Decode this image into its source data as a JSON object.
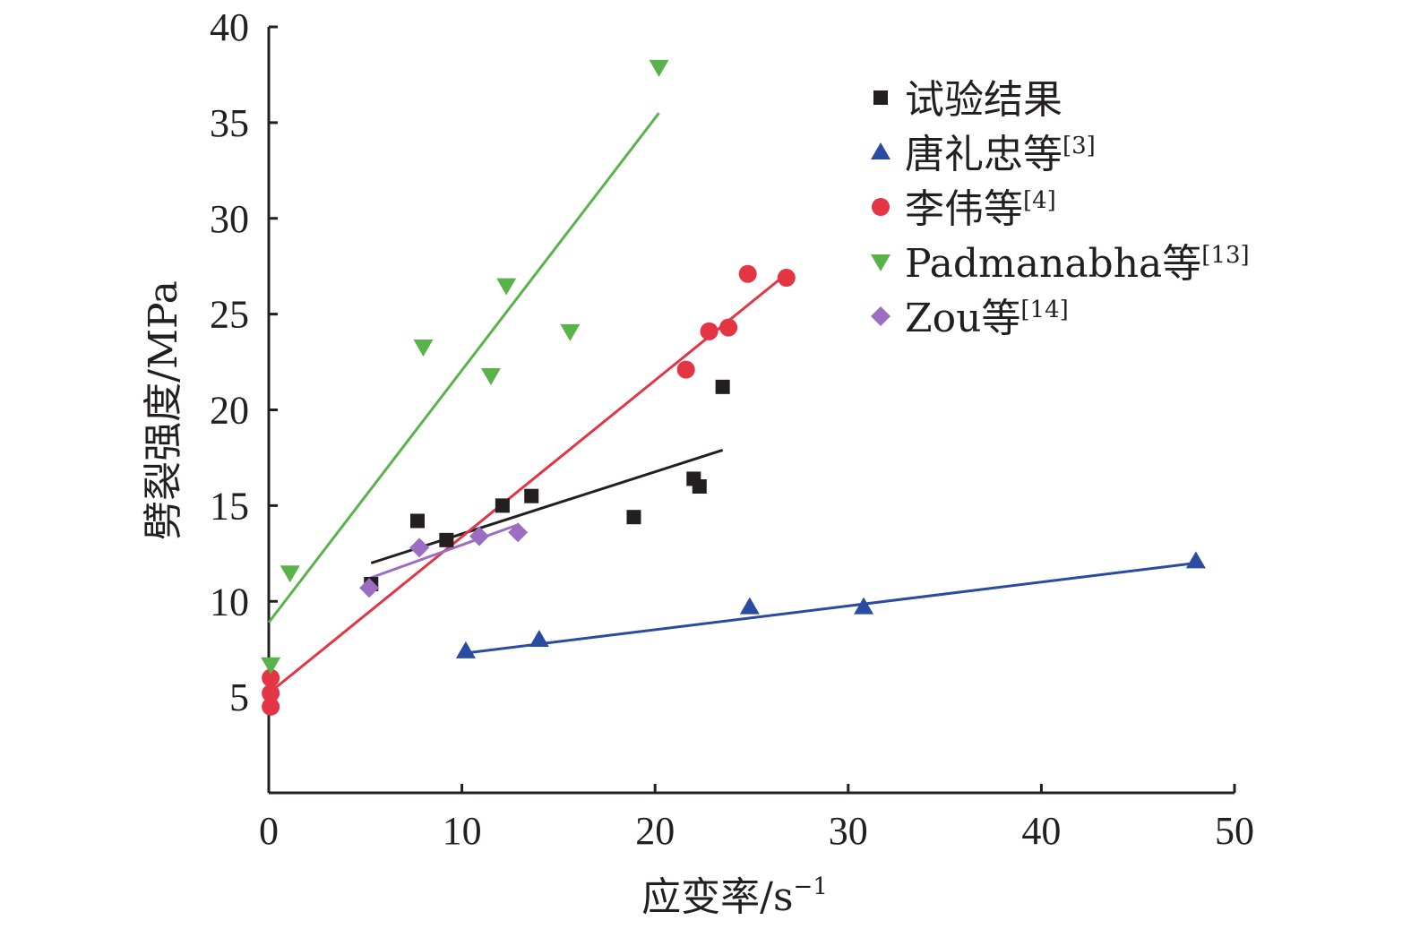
{
  "chart_data": {
    "type": "scatter",
    "xlabel": "应变率/s",
    "xlabel_sup": "−1",
    "ylabel": "劈裂强度/MPa",
    "xlim": [
      0,
      50
    ],
    "ylim": [
      0,
      40
    ],
    "xticks": [
      "0",
      "10",
      "20",
      "30",
      "40",
      "50"
    ],
    "yticks": [
      "5",
      "10",
      "15",
      "20",
      "25",
      "30",
      "35",
      "40"
    ],
    "legend_position": "top-right",
    "series": [
      {
        "name": "试验结果",
        "ref": "",
        "marker": "square",
        "color": "#231f20",
        "points": [
          [
            5.3,
            10.9
          ],
          [
            7.7,
            14.2
          ],
          [
            9.2,
            13.2
          ],
          [
            12.1,
            15.0
          ],
          [
            13.6,
            15.5
          ],
          [
            18.9,
            14.4
          ],
          [
            22.0,
            16.4
          ],
          [
            22.3,
            16.0
          ],
          [
            23.5,
            21.2
          ]
        ],
        "fit": [
          [
            5.3,
            12.0
          ],
          [
            23.5,
            17.9
          ]
        ]
      },
      {
        "name": "唐礼忠等",
        "ref": "[3]",
        "marker": "triangle-up",
        "color": "#2a4ca0",
        "points": [
          [
            10.2,
            7.4
          ],
          [
            14.0,
            8.0
          ],
          [
            24.9,
            9.7
          ],
          [
            30.8,
            9.7
          ],
          [
            48.0,
            12.1
          ]
        ],
        "fit": [
          [
            10.2,
            7.3
          ],
          [
            48.0,
            12.0
          ]
        ]
      },
      {
        "name": "李伟等",
        "ref": "[4]",
        "marker": "circle",
        "color": "#e33544",
        "points": [
          [
            0.1,
            4.5
          ],
          [
            0.1,
            5.2
          ],
          [
            0.1,
            6.0
          ],
          [
            21.6,
            22.1
          ],
          [
            22.8,
            24.1
          ],
          [
            23.8,
            24.3
          ],
          [
            24.8,
            27.1
          ],
          [
            26.8,
            26.9
          ]
        ],
        "fit": [
          [
            0.0,
            5.2
          ],
          [
            26.8,
            27.1
          ]
        ]
      },
      {
        "name": "Padmanabha等",
        "ref": "[13]",
        "marker": "triangle-down",
        "color": "#5ab34a",
        "points": [
          [
            0.1,
            6.7
          ],
          [
            1.1,
            11.5
          ],
          [
            8.0,
            23.3
          ],
          [
            11.5,
            21.8
          ],
          [
            12.3,
            26.5
          ],
          [
            15.6,
            24.1
          ],
          [
            20.2,
            37.9
          ]
        ],
        "fit": [
          [
            0.0,
            8.9
          ],
          [
            20.2,
            35.5
          ]
        ]
      },
      {
        "name": "Zou等",
        "ref": "[14]",
        "marker": "diamond",
        "color": "#9b6ec3",
        "points": [
          [
            5.2,
            10.7
          ],
          [
            7.8,
            12.8
          ],
          [
            10.9,
            13.4
          ],
          [
            12.9,
            13.6
          ]
        ],
        "fit": [
          [
            5.2,
            11.2
          ],
          [
            12.9,
            14.0
          ]
        ]
      }
    ]
  }
}
